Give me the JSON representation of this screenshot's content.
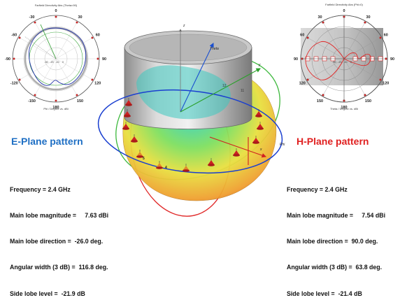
{
  "e_plane": {
    "plot_title": "Farfield Directivity Abs (Theta=90)",
    "axis_caption": "Phi / Degree vs. dBi",
    "heading": "E-Plane pattern",
    "heading_color": "#1f6fc4",
    "angle_labels": [
      "0",
      "30",
      "60",
      "90",
      "120",
      "150",
      "180",
      "-150",
      "-120",
      "-90",
      "-60",
      "-30"
    ],
    "scale_labels": [
      "-30",
      "-20",
      "-10",
      "0"
    ],
    "params": {
      "frequency": "Frequency = 2.4 GHz",
      "magnitude": "Main lobe magnitude =     7.63 dBi",
      "direction": "Main lobe direction =  -26.0 deg.",
      "width": "Angular width (3 dB) =  116.8 deg.",
      "sidelobe": "Side lobe level =  -21.9 dB"
    }
  },
  "h_plane": {
    "plot_title": "Farfield Directivity Abs (Phi=0)",
    "axis_caption": "Theta / Degree vs. dBi",
    "heading": "H-Plane pattern",
    "heading_color": "#e02020",
    "angle_labels": [
      "0",
      "30",
      "60",
      "90",
      "120",
      "150",
      "180",
      "150",
      "120",
      "90",
      "60",
      "30"
    ],
    "scale_labels": [
      "-30",
      "-20",
      "-10",
      "0"
    ],
    "params": {
      "frequency": "Frequency = 2.4 GHz",
      "magnitude": "Main lobe magnitude =     7.54 dBi",
      "direction": "Main lobe direction =  90.0 deg.",
      "width": "Angular width (3 dB) =  63.8 deg.",
      "sidelobe": "Side lobe level =  -21.4 dB"
    }
  },
  "center_axes": {
    "z": "z",
    "y": "y",
    "x": "x",
    "theta": "Theta",
    "phi": "Phi"
  },
  "colors": {
    "e_trace": "#2233aa",
    "h_trace": "#e02828",
    "marker": "#cc2222"
  }
}
